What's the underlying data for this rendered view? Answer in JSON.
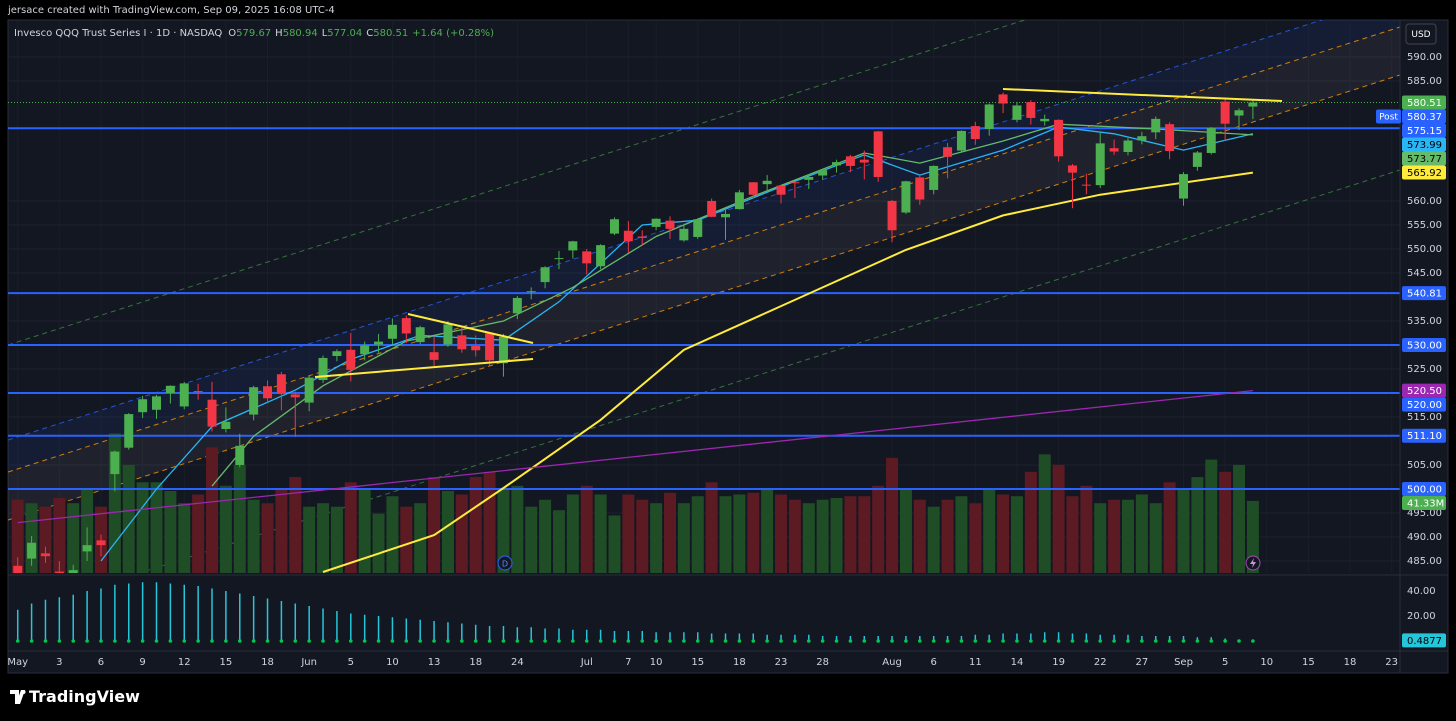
{
  "header": "jersace created with TradingView.com, Sep 09, 2025 16:08 UTC-4",
  "brand": "TradingView",
  "chart_data": {
    "type": "candlestick",
    "legend": {
      "title": "Invesco QQQ Trust Series I · 1D · NASDAQ",
      "open_label": "O",
      "high_label": "H",
      "low_label": "L",
      "close_label": "C",
      "change": "+1.64 (+0.28%)"
    },
    "currency": "USD",
    "up_color": "#4caf50",
    "down_color": "#f23645",
    "volume_up_color": "#1f4d26",
    "volume_down_color": "#5c1a22",
    "xlim": [
      -0.7,
      99.6
    ],
    "xticks": [
      {
        "value": 0,
        "label": "May"
      },
      3,
      6,
      9,
      12,
      15,
      18,
      {
        "value": 21,
        "label": "Jun"
      },
      {
        "value": 24,
        "label": "5"
      },
      {
        "value": 27,
        "label": "10"
      },
      {
        "value": 30,
        "label": "13"
      },
      {
        "value": 33,
        "label": "18"
      },
      {
        "value": 36,
        "label": "24"
      },
      {
        "value": 41,
        "label": "Jul"
      },
      {
        "value": 44,
        "label": "7"
      },
      {
        "value": 46,
        "label": "10"
      },
      {
        "value": 49,
        "label": "15"
      },
      {
        "value": 52,
        "label": "18"
      },
      {
        "value": 55,
        "label": "23"
      },
      {
        "value": 58,
        "label": "28"
      },
      {
        "value": 63,
        "label": "Aug"
      },
      {
        "value": 66,
        "label": "6"
      },
      {
        "value": 69,
        "label": "11"
      },
      {
        "value": 72,
        "label": "14"
      },
      {
        "value": 75,
        "label": "19"
      },
      {
        "value": 78,
        "label": "22"
      },
      {
        "value": 81,
        "label": "27"
      },
      {
        "value": 84,
        "label": "Sep"
      },
      {
        "value": 87,
        "label": "5"
      },
      {
        "value": 90,
        "label": "10"
      },
      {
        "value": 93,
        "label": "15"
      },
      {
        "value": 96,
        "label": "18"
      },
      {
        "value": 99,
        "label": "23"
      }
    ],
    "ylim": [
      482.5,
      597.7
    ],
    "yticks": [
      {
        "value": 590,
        "label": "590.00"
      },
      {
        "value": 585,
        "label": "585.00"
      },
      {
        "value": 560,
        "label": "560.00"
      },
      {
        "value": 555,
        "label": "555.00"
      },
      {
        "value": 550,
        "label": "550.00"
      },
      {
        "value": 545,
        "label": "545.00"
      },
      {
        "value": 535,
        "label": "535.00"
      },
      {
        "value": 525,
        "label": "525.00"
      },
      {
        "value": 515,
        "label": "515.00"
      },
      {
        "value": 505,
        "label": "505.00"
      },
      {
        "value": 495,
        "label": "495.00"
      },
      {
        "value": 490,
        "label": "490.00"
      },
      {
        "value": 485,
        "label": "485.00"
      }
    ],
    "grid": true,
    "candles": [
      [
        484.0,
        485.8,
        478.9,
        480.3
      ],
      [
        485.5,
        490.2,
        484.0,
        488.8
      ],
      [
        486.6,
        488.0,
        484.6,
        486.0
      ],
      [
        482.8,
        485.0,
        480.4,
        481.0
      ],
      [
        482.0,
        484.2,
        477.7,
        483.1
      ],
      [
        487.0,
        492.0,
        485.0,
        488.3
      ],
      [
        489.3,
        490.5,
        486.0,
        488.3
      ],
      [
        503.1,
        508.0,
        499.5,
        507.8
      ],
      [
        508.6,
        515.8,
        508.2,
        515.6
      ],
      [
        516.0,
        519.4,
        514.8,
        518.7
      ],
      [
        516.5,
        519.6,
        514.6,
        519.3
      ],
      [
        520.0,
        521.6,
        517.8,
        521.5
      ],
      [
        517.2,
        522.3,
        516.6,
        522.0
      ],
      [
        520.4,
        521.9,
        518.6,
        520.3
      ],
      [
        518.6,
        522.3,
        512.0,
        513.0
      ],
      [
        512.5,
        517.0,
        511.8,
        514.0
      ],
      [
        505.0,
        511.5,
        504.5,
        509.0
      ],
      [
        515.5,
        521.5,
        514.3,
        521.2
      ],
      [
        521.4,
        522.6,
        518.3,
        518.9
      ],
      [
        523.9,
        524.4,
        516.4,
        519.9
      ],
      [
        519.7,
        520.3,
        510.8,
        519.1
      ],
      [
        518.0,
        523.6,
        516.2,
        523.2
      ],
      [
        522.7,
        527.8,
        522.1,
        527.3
      ],
      [
        527.7,
        529.1,
        526.6,
        528.7
      ],
      [
        529.0,
        532.5,
        522.4,
        524.8
      ],
      [
        528.1,
        530.7,
        526.8,
        529.9
      ],
      [
        530.1,
        532.3,
        528.4,
        530.7
      ],
      [
        531.3,
        535.5,
        530.1,
        534.2
      ],
      [
        535.6,
        536.1,
        530.4,
        532.4
      ],
      [
        530.6,
        534.0,
        530.2,
        533.7
      ],
      [
        528.5,
        531.8,
        525.6,
        526.9
      ],
      [
        530.1,
        535.0,
        529.6,
        534.3
      ],
      [
        532.0,
        533.7,
        528.4,
        529.1
      ],
      [
        529.8,
        532.0,
        527.6,
        528.9
      ],
      [
        532.4,
        532.6,
        525.5,
        526.8
      ],
      [
        526.2,
        532.3,
        523.4,
        531.7
      ],
      [
        536.6,
        540.2,
        535.4,
        539.8
      ],
      [
        541.2,
        542.0,
        539.5,
        541.2
      ],
      [
        543.1,
        546.4,
        541.8,
        546.2
      ],
      [
        548.1,
        549.6,
        545.8,
        548.1
      ],
      [
        549.7,
        551.7,
        548.0,
        551.6
      ],
      [
        549.5,
        550.0,
        544.7,
        547.0
      ],
      [
        546.4,
        551.0,
        545.8,
        550.8
      ],
      [
        553.2,
        556.6,
        552.9,
        556.2
      ],
      [
        553.8,
        555.8,
        549.2,
        551.6
      ],
      [
        552.6,
        553.9,
        550.8,
        552.3
      ],
      [
        554.6,
        556.4,
        553.9,
        556.3
      ],
      [
        555.9,
        556.8,
        552.1,
        554.2
      ],
      [
        551.8,
        555.3,
        551.5,
        554.2
      ],
      [
        552.5,
        556.4,
        552.1,
        556.2
      ],
      [
        560.0,
        560.5,
        556.6,
        556.7
      ],
      [
        556.6,
        558.5,
        551.9,
        557.3
      ],
      [
        558.3,
        562.3,
        558.2,
        561.8
      ],
      [
        563.9,
        563.9,
        560.5,
        561.3
      ],
      [
        563.5,
        565.4,
        561.9,
        564.2
      ],
      [
        563.2,
        563.3,
        559.5,
        561.3
      ],
      [
        563.9,
        564.1,
        560.6,
        563.8
      ],
      [
        564.4,
        565.6,
        562.5,
        565.0
      ],
      [
        565.3,
        566.6,
        564.4,
        566.4
      ],
      [
        567.4,
        568.6,
        565.9,
        568.1
      ],
      [
        569.3,
        569.6,
        566.0,
        567.3
      ],
      [
        568.6,
        570.5,
        564.5,
        568.0
      ],
      [
        574.5,
        574.6,
        564.0,
        565.0
      ],
      [
        560.0,
        560.2,
        551.4,
        553.9
      ],
      [
        557.6,
        564.2,
        557.3,
        564.1
      ],
      [
        564.9,
        565.6,
        559.2,
        560.3
      ],
      [
        562.3,
        567.4,
        561.4,
        567.3
      ],
      [
        571.2,
        572.1,
        564.7,
        569.2
      ],
      [
        570.5,
        574.7,
        570.3,
        574.6
      ],
      [
        575.6,
        576.5,
        571.7,
        572.9
      ],
      [
        575.0,
        580.3,
        573.6,
        580.1
      ],
      [
        582.2,
        582.6,
        578.3,
        580.3
      ],
      [
        576.9,
        580.6,
        576.4,
        579.9
      ],
      [
        580.6,
        581.0,
        575.9,
        577.3
      ],
      [
        576.6,
        578.0,
        575.7,
        577.1
      ],
      [
        576.9,
        577.0,
        568.2,
        569.3
      ],
      [
        567.4,
        567.7,
        558.5,
        565.9
      ],
      [
        563.4,
        565.7,
        561.4,
        563.3
      ],
      [
        563.3,
        574.2,
        562.7,
        572.0
      ],
      [
        571.0,
        572.8,
        569.6,
        570.3
      ],
      [
        570.2,
        573.1,
        569.5,
        572.6
      ],
      [
        572.6,
        574.4,
        571.8,
        573.5
      ],
      [
        574.3,
        577.6,
        572.9,
        577.1
      ],
      [
        576.0,
        576.4,
        568.7,
        570.4
      ],
      [
        560.5,
        566.0,
        559.0,
        565.6
      ],
      [
        567.1,
        570.4,
        566.3,
        570.1
      ],
      [
        570.0,
        575.4,
        569.7,
        575.2
      ],
      [
        580.7,
        581.2,
        572.5,
        576.1
      ],
      [
        577.8,
        579.3,
        574.8,
        578.9
      ],
      [
        579.67,
        580.94,
        577.04,
        580.51
      ]
    ],
    "volume": [
      42,
      40,
      38,
      43,
      40,
      48,
      38,
      80,
      62,
      52,
      52,
      47,
      40,
      45,
      72,
      50,
      62,
      42,
      40,
      48,
      55,
      38,
      40,
      38,
      52,
      48,
      34,
      44,
      38,
      40,
      55,
      47,
      45,
      55,
      58,
      48,
      50,
      38,
      42,
      36,
      45,
      50,
      45,
      33,
      45,
      42,
      40,
      46,
      40,
      44,
      52,
      44,
      45,
      46,
      48,
      45,
      42,
      40,
      42,
      43,
      44,
      44,
      50,
      66,
      48,
      42,
      38,
      42,
      44,
      40,
      48,
      45,
      44,
      58,
      68,
      62,
      44,
      50,
      40,
      42,
      42,
      45,
      40,
      52,
      48,
      55,
      65,
      58,
      62,
      41.33
    ],
    "volume_ylim": [
      0,
      317
    ],
    "volume_label": "41.33M",
    "overlays": [
      {
        "color": "#29b6f6",
        "x": [
          6,
          10,
          14,
          20,
          24,
          29,
          35,
          39,
          45,
          49,
          55,
          61,
          65,
          71,
          75,
          79,
          84,
          89
        ],
        "values": [
          485,
          500,
          513,
          520.6,
          527,
          532,
          531,
          539,
          555,
          556,
          563,
          569.6,
          565.4,
          570.6,
          575.4,
          574,
          570.6,
          573.99
        ]
      },
      {
        "color": "#66bb6a",
        "x": [
          14,
          17,
          22,
          28,
          35,
          40,
          46,
          53,
          61,
          65,
          71,
          75,
          82,
          89
        ],
        "values": [
          500.6,
          511,
          521.5,
          530.8,
          535,
          542,
          552.6,
          561,
          570,
          567.9,
          572.5,
          576,
          575,
          573.77
        ]
      },
      {
        "color": "#ffeb3b",
        "x": [
          22,
          30,
          35,
          42,
          48,
          56,
          64,
          71,
          78,
          89
        ],
        "values": [
          482.7,
          490.4,
          500.2,
          514.4,
          529,
          539.4,
          549.8,
          557,
          561.3,
          565.92
        ]
      },
      {
        "color": "#9c27b0",
        "x": [
          0,
          89
        ],
        "values": [
          493,
          520.5
        ],
        "value_labels": [
          null,
          "520.50"
        ]
      }
    ],
    "levels": [
      575.15,
      540.81,
      {
        "value": 530,
        "label": "530.00"
      },
      {
        "value": 520,
        "label": "520.00"
      },
      {
        "value": 511.1,
        "label": "511.10"
      },
      {
        "value": 500,
        "label": "500.00"
      }
    ],
    "level_color": "#2962ff",
    "post_label": "Post",
    "post_price": 580.37,
    "indicator": {
      "color": "#26c6da",
      "ylim": [
        -7.2,
        52.8
      ],
      "yticks": [
        {
          "value": 40,
          "label": "40.00"
        },
        {
          "value": 20,
          "label": "20.00"
        }
      ],
      "values": [
        25,
        30,
        33,
        35,
        37,
        40,
        42,
        45,
        46,
        47,
        47,
        46,
        45,
        44,
        42,
        40,
        38,
        36,
        34,
        32,
        30,
        28,
        26,
        24,
        22,
        21,
        20,
        19,
        18,
        17,
        16,
        15,
        14,
        13,
        12,
        12,
        11,
        11,
        10,
        10,
        9,
        9,
        9,
        8,
        8,
        8,
        7,
        7,
        7,
        7,
        6,
        6,
        6,
        6,
        5,
        5,
        5,
        5,
        4,
        4,
        4,
        4,
        4,
        4,
        4,
        4,
        4,
        4,
        4,
        5,
        5,
        6,
        6,
        6,
        7,
        7,
        6,
        6,
        5,
        5,
        5,
        4,
        4,
        4,
        4,
        3,
        3,
        2,
        1,
        0.4877
      ]
    }
  }
}
